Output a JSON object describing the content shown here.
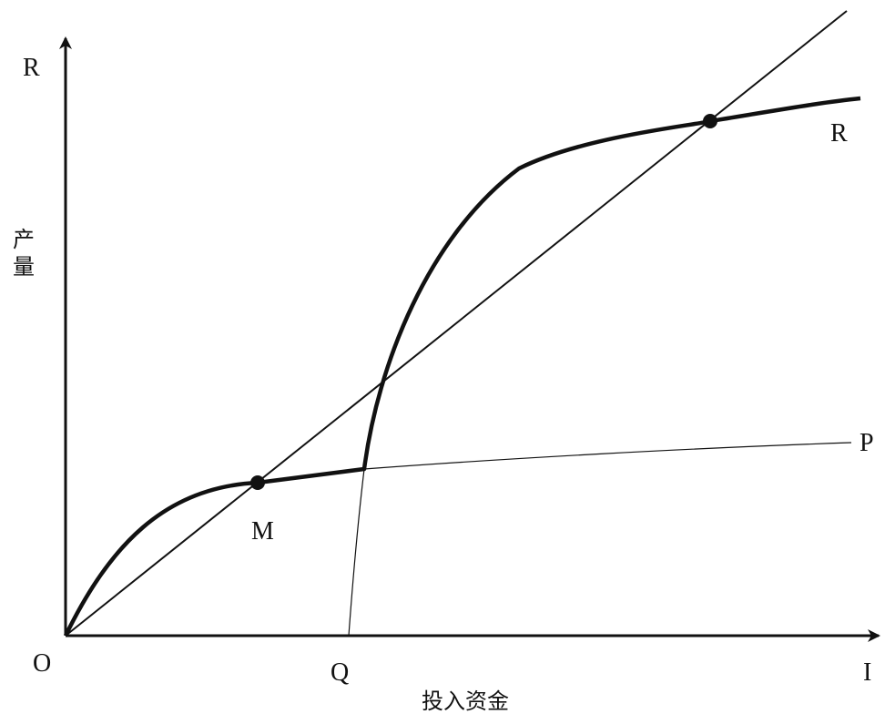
{
  "axes": {
    "origin_label": "O",
    "y_axis_label": "R",
    "y_axis_title": "产量",
    "x_axis_label": "I",
    "x_axis_title": "投入资金"
  },
  "curves": {
    "upper_curve_label": "R",
    "lower_curve_label": "P"
  },
  "points": {
    "low_equilibrium_label": "M",
    "threshold_label": "Q"
  },
  "colors": {
    "ink": "#111111",
    "background": "#ffffff"
  }
}
